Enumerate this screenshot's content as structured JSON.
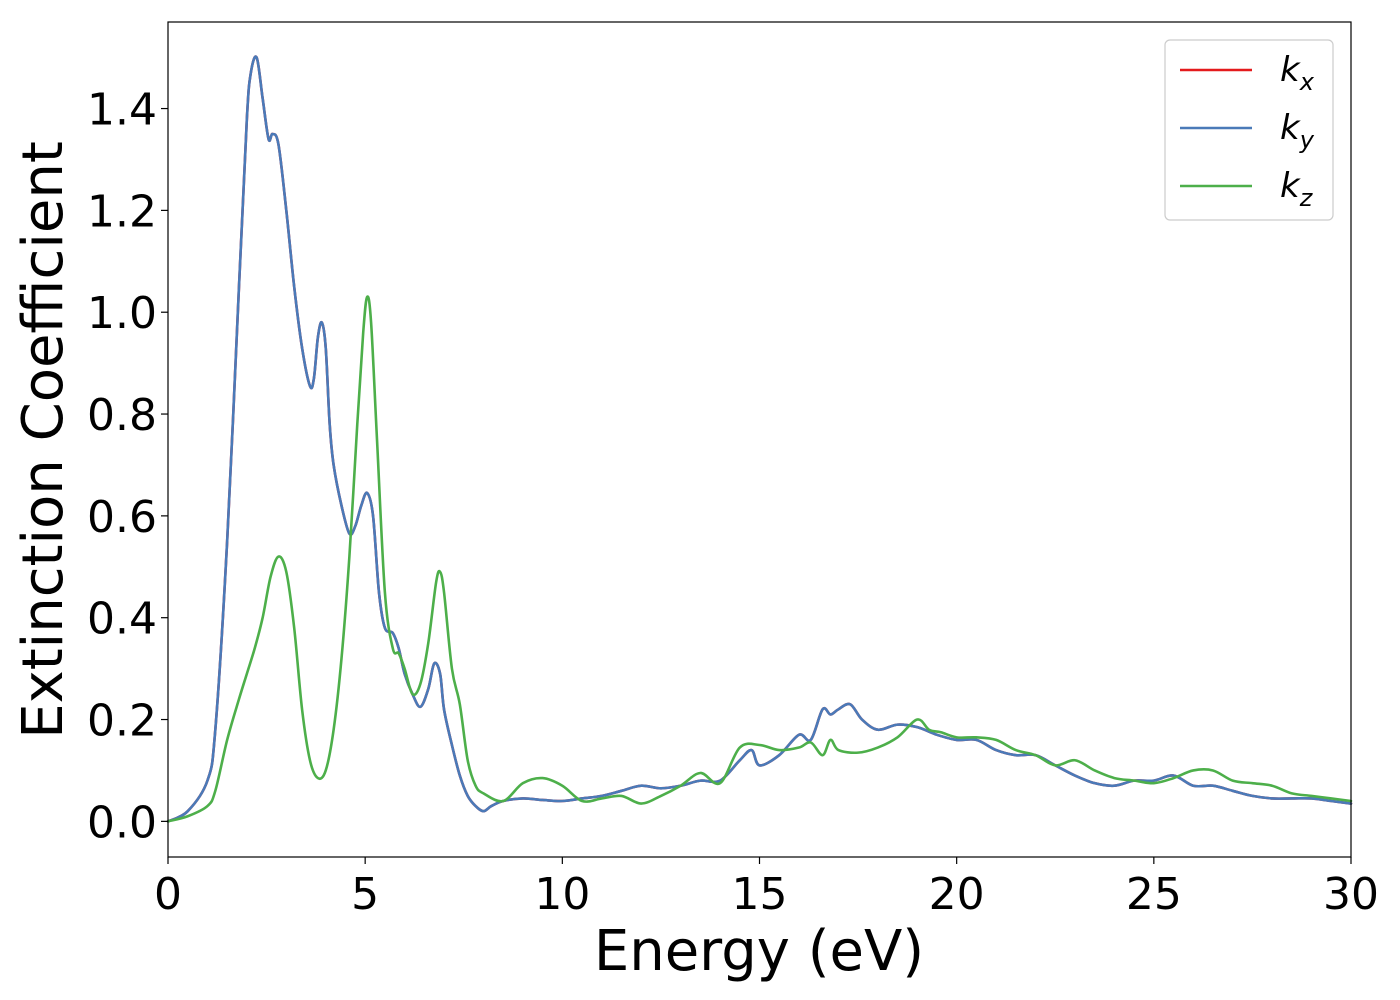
{
  "chart_data": {
    "type": "line",
    "title": "",
    "xlabel": "Energy (eV)",
    "ylabel": "Extinction Coefficient",
    "xlim": [
      0,
      30
    ],
    "ylim": [
      -0.07,
      1.57
    ],
    "xticks": [
      0,
      5,
      10,
      15,
      20,
      25,
      30
    ],
    "xtick_labels": [
      "0",
      "5",
      "10",
      "15",
      "20",
      "25",
      "30"
    ],
    "yticks": [
      0.0,
      0.2,
      0.4,
      0.6,
      0.8,
      1.0,
      1.2,
      1.4
    ],
    "ytick_labels": [
      "0.0",
      "0.2",
      "0.4",
      "0.6",
      "0.8",
      "1.0",
      "1.2",
      "1.4"
    ],
    "grid": false,
    "legend_position": "top-right",
    "series": [
      {
        "name": "k",
        "subscript": "x",
        "color": "#e41a1c",
        "x": [
          0,
          0.5,
          1.0,
          1.2,
          1.5,
          1.8,
          2.0,
          2.1,
          2.25,
          2.4,
          2.55,
          2.65,
          2.8,
          3.0,
          3.2,
          3.4,
          3.6,
          3.7,
          3.8,
          3.9,
          4.0,
          4.1,
          4.2,
          4.4,
          4.6,
          4.75,
          4.9,
          5.05,
          5.2,
          5.35,
          5.5,
          5.7,
          5.85,
          6.0,
          6.2,
          6.4,
          6.6,
          6.75,
          6.9,
          7.0,
          7.2,
          7.4,
          7.6,
          7.8,
          8.0,
          8.2,
          8.5,
          9.0,
          9.5,
          10.0,
          10.5,
          11.0,
          11.5,
          12.0,
          12.5,
          13.0,
          13.5,
          14.0,
          14.5,
          14.8,
          15.0,
          15.5,
          16.0,
          16.3,
          16.6,
          16.8,
          17.0,
          17.3,
          17.6,
          18.0,
          18.5,
          19.0,
          19.5,
          20.0,
          20.5,
          21.0,
          21.5,
          22.0,
          22.5,
          23.0,
          23.5,
          24.0,
          24.5,
          25.0,
          25.5,
          26.0,
          26.5,
          27.0,
          27.5,
          28.0,
          28.5,
          29.0,
          29.5,
          30.0
        ],
        "y": [
          0.0,
          0.02,
          0.08,
          0.18,
          0.55,
          1.05,
          1.38,
          1.47,
          1.5,
          1.42,
          1.34,
          1.35,
          1.33,
          1.2,
          1.05,
          0.93,
          0.855,
          0.87,
          0.95,
          0.98,
          0.93,
          0.78,
          0.7,
          0.62,
          0.565,
          0.58,
          0.62,
          0.645,
          0.6,
          0.45,
          0.38,
          0.37,
          0.34,
          0.29,
          0.25,
          0.225,
          0.26,
          0.31,
          0.29,
          0.22,
          0.15,
          0.09,
          0.05,
          0.03,
          0.02,
          0.03,
          0.04,
          0.045,
          0.042,
          0.04,
          0.045,
          0.05,
          0.06,
          0.07,
          0.065,
          0.07,
          0.08,
          0.08,
          0.12,
          0.14,
          0.11,
          0.13,
          0.17,
          0.16,
          0.22,
          0.21,
          0.22,
          0.23,
          0.2,
          0.18,
          0.19,
          0.185,
          0.17,
          0.16,
          0.16,
          0.14,
          0.13,
          0.13,
          0.11,
          0.09,
          0.075,
          0.07,
          0.08,
          0.08,
          0.09,
          0.07,
          0.07,
          0.06,
          0.05,
          0.045,
          0.045,
          0.045,
          0.04,
          0.035
        ]
      },
      {
        "name": "k",
        "subscript": "y",
        "color": "#4a7ab8",
        "x": [
          0,
          0.5,
          1.0,
          1.2,
          1.5,
          1.8,
          2.0,
          2.1,
          2.25,
          2.4,
          2.55,
          2.65,
          2.8,
          3.0,
          3.2,
          3.4,
          3.6,
          3.7,
          3.8,
          3.9,
          4.0,
          4.1,
          4.2,
          4.4,
          4.6,
          4.75,
          4.9,
          5.05,
          5.2,
          5.35,
          5.5,
          5.7,
          5.85,
          6.0,
          6.2,
          6.4,
          6.6,
          6.75,
          6.9,
          7.0,
          7.2,
          7.4,
          7.6,
          7.8,
          8.0,
          8.2,
          8.5,
          9.0,
          9.5,
          10.0,
          10.5,
          11.0,
          11.5,
          12.0,
          12.5,
          13.0,
          13.5,
          14.0,
          14.5,
          14.8,
          15.0,
          15.5,
          16.0,
          16.3,
          16.6,
          16.8,
          17.0,
          17.3,
          17.6,
          18.0,
          18.5,
          19.0,
          19.5,
          20.0,
          20.5,
          21.0,
          21.5,
          22.0,
          22.5,
          23.0,
          23.5,
          24.0,
          24.5,
          25.0,
          25.5,
          26.0,
          26.5,
          27.0,
          27.5,
          28.0,
          28.5,
          29.0,
          29.5,
          30.0
        ],
        "y": [
          0.0,
          0.02,
          0.08,
          0.18,
          0.55,
          1.05,
          1.38,
          1.47,
          1.5,
          1.42,
          1.34,
          1.35,
          1.33,
          1.2,
          1.05,
          0.93,
          0.855,
          0.87,
          0.95,
          0.98,
          0.93,
          0.78,
          0.7,
          0.62,
          0.565,
          0.58,
          0.62,
          0.645,
          0.6,
          0.45,
          0.38,
          0.37,
          0.34,
          0.29,
          0.25,
          0.225,
          0.26,
          0.31,
          0.29,
          0.22,
          0.15,
          0.09,
          0.05,
          0.03,
          0.02,
          0.03,
          0.04,
          0.045,
          0.042,
          0.04,
          0.045,
          0.05,
          0.06,
          0.07,
          0.065,
          0.07,
          0.08,
          0.08,
          0.12,
          0.14,
          0.11,
          0.13,
          0.17,
          0.16,
          0.22,
          0.21,
          0.22,
          0.23,
          0.2,
          0.18,
          0.19,
          0.185,
          0.17,
          0.16,
          0.16,
          0.14,
          0.13,
          0.13,
          0.11,
          0.09,
          0.075,
          0.07,
          0.08,
          0.08,
          0.09,
          0.07,
          0.07,
          0.06,
          0.05,
          0.045,
          0.045,
          0.045,
          0.04,
          0.035
        ]
      },
      {
        "name": "k",
        "subscript": "z",
        "color": "#4daf4a",
        "x": [
          0,
          0.5,
          1.0,
          1.2,
          1.5,
          1.8,
          2.0,
          2.2,
          2.4,
          2.6,
          2.8,
          3.0,
          3.2,
          3.4,
          3.6,
          3.8,
          4.0,
          4.2,
          4.4,
          4.6,
          4.8,
          4.95,
          5.05,
          5.15,
          5.3,
          5.5,
          5.7,
          5.85,
          6.0,
          6.2,
          6.4,
          6.6,
          6.8,
          6.9,
          7.0,
          7.2,
          7.4,
          7.6,
          7.8,
          8.0,
          8.5,
          9.0,
          9.5,
          10.0,
          10.5,
          11.0,
          11.5,
          12.0,
          12.5,
          13.0,
          13.5,
          14.0,
          14.5,
          15.0,
          15.5,
          16.0,
          16.3,
          16.6,
          16.8,
          17.0,
          17.5,
          18.0,
          18.5,
          19.0,
          19.3,
          19.6,
          20.0,
          20.5,
          21.0,
          21.5,
          22.0,
          22.5,
          23.0,
          23.5,
          24.0,
          24.5,
          25.0,
          25.5,
          26.0,
          26.5,
          27.0,
          27.5,
          28.0,
          28.5,
          29.0,
          29.5,
          30.0
        ],
        "y": [
          0.0,
          0.01,
          0.03,
          0.06,
          0.16,
          0.24,
          0.29,
          0.34,
          0.4,
          0.48,
          0.52,
          0.49,
          0.38,
          0.22,
          0.12,
          0.085,
          0.1,
          0.18,
          0.32,
          0.52,
          0.78,
          0.96,
          1.03,
          0.98,
          0.75,
          0.45,
          0.34,
          0.33,
          0.3,
          0.25,
          0.27,
          0.35,
          0.47,
          0.49,
          0.45,
          0.3,
          0.23,
          0.12,
          0.07,
          0.055,
          0.04,
          0.075,
          0.085,
          0.07,
          0.04,
          0.045,
          0.05,
          0.035,
          0.05,
          0.07,
          0.095,
          0.075,
          0.145,
          0.15,
          0.14,
          0.145,
          0.155,
          0.13,
          0.16,
          0.14,
          0.135,
          0.145,
          0.165,
          0.2,
          0.18,
          0.175,
          0.165,
          0.165,
          0.16,
          0.14,
          0.13,
          0.11,
          0.12,
          0.1,
          0.085,
          0.08,
          0.075,
          0.085,
          0.1,
          0.1,
          0.08,
          0.075,
          0.07,
          0.055,
          0.05,
          0.045,
          0.04
        ]
      }
    ]
  }
}
